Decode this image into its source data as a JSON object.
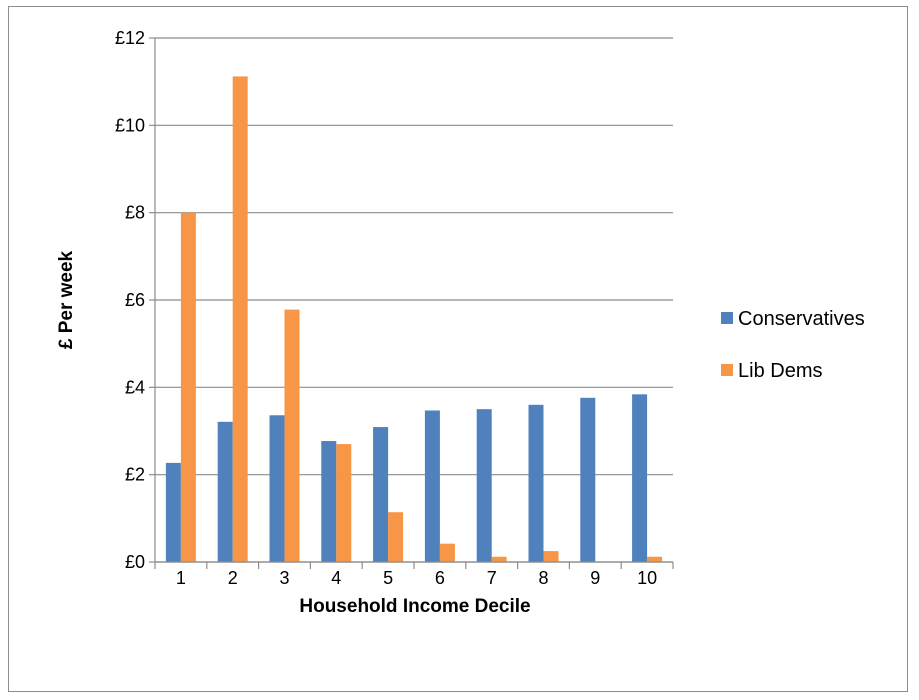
{
  "chart_data": {
    "type": "bar",
    "title": "",
    "xlabel": "Household Income Decile",
    "ylabel": "£ Per week",
    "categories": [
      "1",
      "2",
      "3",
      "4",
      "5",
      "6",
      "7",
      "8",
      "9",
      "10"
    ],
    "series": [
      {
        "name": "Conservatives",
        "color": "#4f81bd",
        "values": [
          2.27,
          3.21,
          3.36,
          2.77,
          3.09,
          3.47,
          3.5,
          3.6,
          3.76,
          3.84
        ]
      },
      {
        "name": "Lib Dems",
        "color": "#f79646",
        "values": [
          8.0,
          11.12,
          5.78,
          2.7,
          1.14,
          0.42,
          0.12,
          0.25,
          0.0,
          0.12
        ]
      }
    ],
    "ylim": [
      0,
      12
    ],
    "yticks": [
      0,
      2,
      4,
      6,
      8,
      10,
      12
    ],
    "ytick_labels": [
      "£0",
      "£2",
      "£4",
      "£6",
      "£8",
      "£10",
      "£12"
    ],
    "grid": "horizontal",
    "legend": "right"
  }
}
